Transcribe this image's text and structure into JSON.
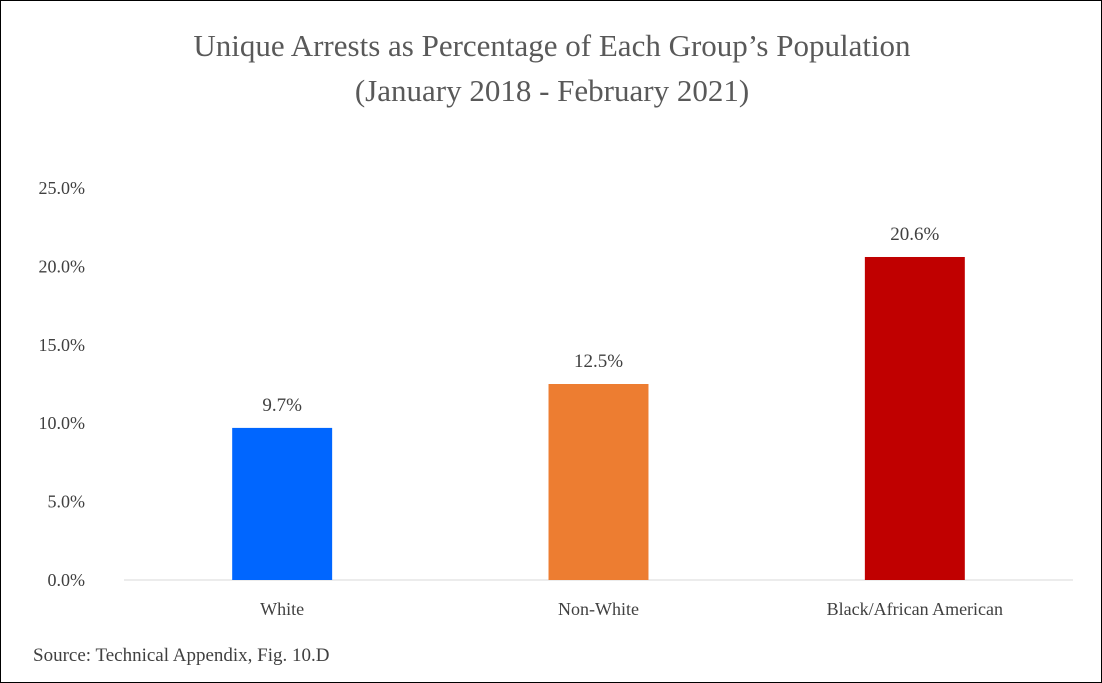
{
  "chart_data": {
    "type": "bar",
    "title": [
      "Unique Arrests as Percentage of Each Group’s Population",
      "(January 2018 - February 2021)"
    ],
    "categories": [
      "White",
      "Non-White",
      "Black/African American"
    ],
    "values": [
      9.7,
      12.5,
      20.6
    ],
    "data_labels": [
      "9.7%",
      "12.5%",
      "20.6%"
    ],
    "bar_colors": [
      "#0066ff",
      "#ed7d31",
      "#c00000"
    ],
    "ylim": [
      0,
      25
    ],
    "yticks": [
      0,
      5,
      10,
      15,
      20,
      25
    ],
    "ytick_labels": [
      "0.0%",
      "5.0%",
      "10.0%",
      "15.0%",
      "20.0%",
      "25.0%"
    ],
    "xlabel": "",
    "ylabel": "",
    "grid": false,
    "legend": "none"
  },
  "source": "Source: Technical Appendix, Fig. 10.D"
}
